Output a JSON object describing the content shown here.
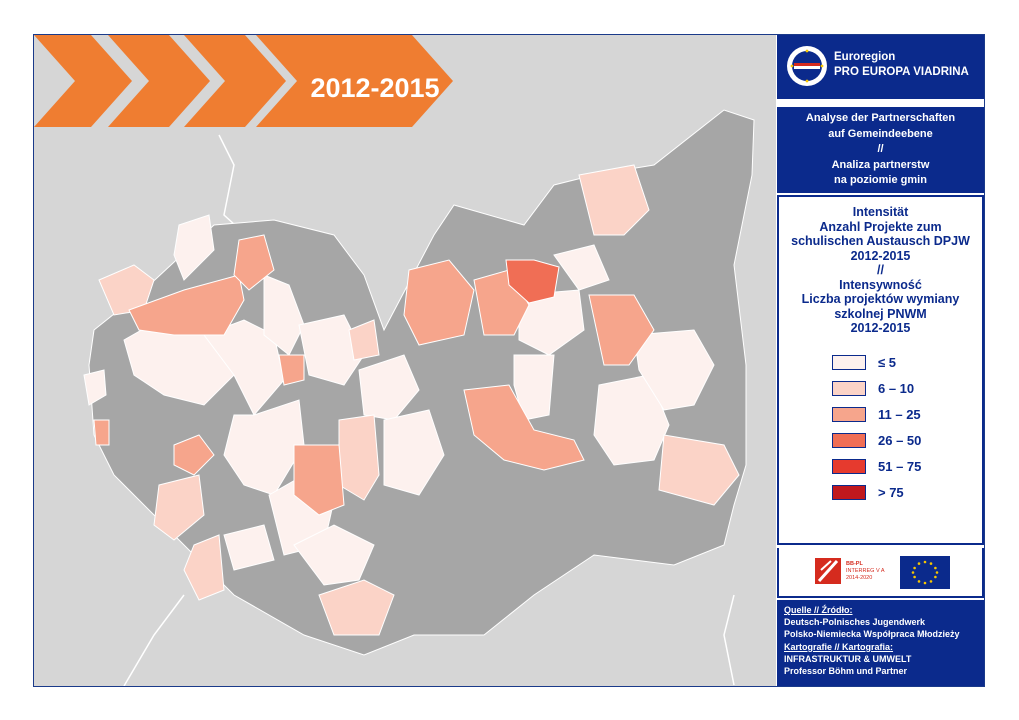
{
  "header": {
    "year_range": "2012-2015"
  },
  "organization": {
    "line1": "Euroregion",
    "line2": "PRO EUROPA VIADRINA"
  },
  "analysis_title": {
    "de_line1": "Analyse der Partnerschaften",
    "de_line2": "auf Gemeindeebene",
    "separator": "//",
    "pl_line1": "Analiza partnerstw",
    "pl_line2": "na poziomie gmin"
  },
  "legend": {
    "title_lines": [
      "Intensität",
      "Anzahl Projekte zum",
      "schulischen Austausch DPJW",
      "2012-2015",
      "//",
      "Intensywność",
      "Liczba projektów  wymiany",
      "szkolnej PNWM",
      "2012-2015"
    ],
    "classes": [
      {
        "label": "≤ 5",
        "color": "#fdf1ee"
      },
      {
        "label": "6 – 10",
        "color": "#fbd3c7"
      },
      {
        "label": "11 – 25",
        "color": "#f6a58c"
      },
      {
        "label": "26 – 50",
        "color": "#f06e55"
      },
      {
        "label": "51 – 75",
        "color": "#e63a2e"
      },
      {
        "label": "> 75",
        "color": "#c0181e"
      }
    ]
  },
  "logos": {
    "interreg_lines": [
      "BB-PL",
      "INTERREG V A",
      "2014-2020"
    ]
  },
  "source": {
    "source_label": "Quelle // Źródło:",
    "source_line1": "Deutsch-Polnisches Jugendwerk",
    "source_line2": "Polsko-Niemiecka Współpraca Młodzieży",
    "carto_label": "Kartografie // Kartografia:",
    "carto_line1": "INFRASTRUKTUR & UMWELT",
    "carto_line2": "Professor Böhm und Partner"
  },
  "colors": {
    "panel_blue": "#0b2a8c",
    "banner_orange": "#ef7d31",
    "no_data_gray": "#a6a6a6",
    "background_gray": "#d6d6d6"
  }
}
